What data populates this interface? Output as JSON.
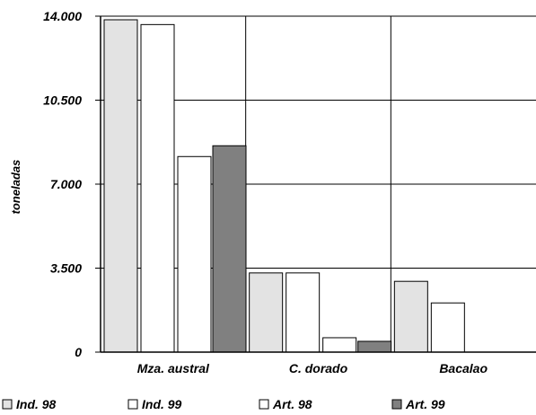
{
  "chart_data": {
    "type": "bar",
    "categories": [
      "Mza. austral",
      "C. dorado",
      "Bacalao"
    ],
    "series": [
      {
        "name": "Ind. 98",
        "values": [
          13850,
          3300,
          2950
        ],
        "color": "#e3e3e3"
      },
      {
        "name": "Ind. 99",
        "values": [
          13650,
          3300,
          2050
        ],
        "color": "#ffffff"
      },
      {
        "name": "Art. 98",
        "values": [
          8150,
          600,
          0
        ],
        "color": "#ffffff"
      },
      {
        "name": "Art. 99",
        "values": [
          8600,
          450,
          0
        ],
        "color": "#808080"
      }
    ],
    "ylabel": "toneladas",
    "ylim": [
      0,
      14000
    ],
    "yticks": [
      0,
      3500,
      7000,
      10500,
      14000
    ],
    "ytick_labels": [
      "0",
      "3.500",
      "7.000",
      "10.500",
      "14.000"
    ],
    "grid": true,
    "legend": "bottom"
  }
}
